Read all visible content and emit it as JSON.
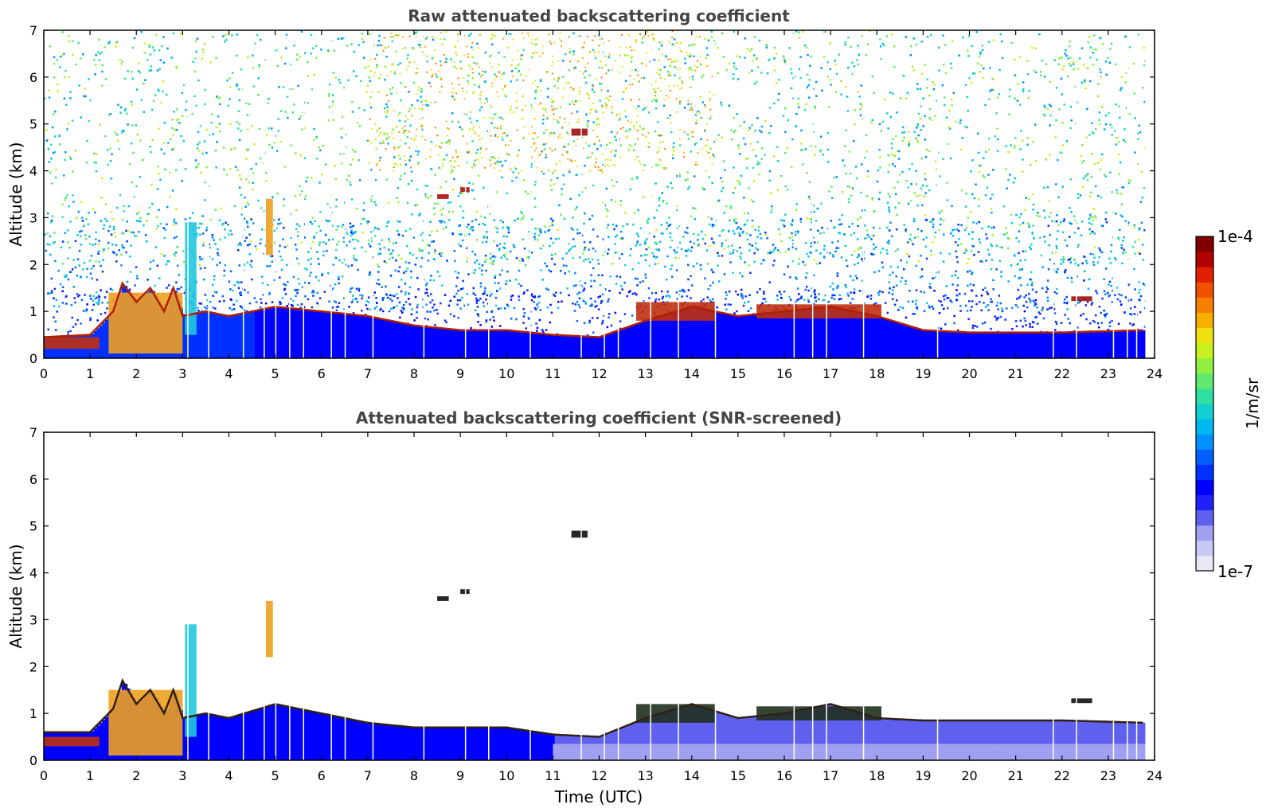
{
  "chart_data": [
    {
      "type": "heatmap",
      "title": "Raw attenuated backscattering coefficient",
      "xlabel": "",
      "ylabel": "Altitude (km)",
      "xlim": [
        0,
        24
      ],
      "ylim": [
        0,
        7
      ],
      "xticks": [
        "0",
        "1",
        "2",
        "3",
        "4",
        "5",
        "6",
        "7",
        "8",
        "9",
        "10",
        "11",
        "12",
        "13",
        "14",
        "15",
        "16",
        "17",
        "18",
        "19",
        "20",
        "21",
        "22",
        "23",
        "24"
      ],
      "yticks": [
        "0",
        "1",
        "2",
        "3",
        "4",
        "5",
        "6",
        "7"
      ],
      "color_scale": "log",
      "clim": [
        1e-07,
        0.0001
      ],
      "screened": false,
      "layer_top_km": [
        {
          "x": 0.0,
          "y": 0.45
        },
        {
          "x": 1.0,
          "y": 0.5
        },
        {
          "x": 1.5,
          "y": 1.0
        },
        {
          "x": 1.7,
          "y": 1.6
        },
        {
          "x": 2.0,
          "y": 1.2
        },
        {
          "x": 2.3,
          "y": 1.5
        },
        {
          "x": 2.6,
          "y": 1.0
        },
        {
          "x": 2.8,
          "y": 1.5
        },
        {
          "x": 3.0,
          "y": 0.9
        },
        {
          "x": 3.5,
          "y": 1.0
        },
        {
          "x": 4.0,
          "y": 0.9
        },
        {
          "x": 5.0,
          "y": 1.1
        },
        {
          "x": 6.0,
          "y": 1.0
        },
        {
          "x": 7.0,
          "y": 0.9
        },
        {
          "x": 8.0,
          "y": 0.7
        },
        {
          "x": 9.0,
          "y": 0.6
        },
        {
          "x": 10.0,
          "y": 0.6
        },
        {
          "x": 11.0,
          "y": 0.5
        },
        {
          "x": 12.0,
          "y": 0.45
        },
        {
          "x": 13.0,
          "y": 0.8
        },
        {
          "x": 14.0,
          "y": 1.1
        },
        {
          "x": 15.0,
          "y": 0.9
        },
        {
          "x": 16.0,
          "y": 1.0
        },
        {
          "x": 17.0,
          "y": 1.1
        },
        {
          "x": 18.0,
          "y": 0.9
        },
        {
          "x": 19.0,
          "y": 0.6
        },
        {
          "x": 20.0,
          "y": 0.55
        },
        {
          "x": 22.0,
          "y": 0.55
        },
        {
          "x": 23.8,
          "y": 0.6
        }
      ],
      "features": [
        {
          "x0": 0.0,
          "x1": 1.2,
          "y0": 0.2,
          "y1": 0.45,
          "color": "#c03010"
        },
        {
          "x0": 1.4,
          "x1": 3.0,
          "y0": 0.1,
          "y1": 1.4,
          "color": "#f0a020"
        },
        {
          "x0": 3.05,
          "x1": 3.3,
          "y0": 0.5,
          "y1": 2.9,
          "color": "#20c8e0"
        },
        {
          "x0": 4.8,
          "x1": 4.95,
          "y0": 2.2,
          "y1": 3.4,
          "color": "#f0a020"
        },
        {
          "x0": 11.4,
          "x1": 11.75,
          "y0": 4.75,
          "y1": 4.9,
          "color": "#a01010"
        },
        {
          "x0": 8.5,
          "x1": 8.75,
          "y0": 3.4,
          "y1": 3.5,
          "color": "#b01010"
        },
        {
          "x0": 9.0,
          "x1": 9.2,
          "y0": 3.55,
          "y1": 3.65,
          "color": "#b01010"
        },
        {
          "x0": 22.2,
          "x1": 22.65,
          "y0": 1.22,
          "y1": 1.32,
          "color": "#a01010"
        },
        {
          "x0": 12.8,
          "x1": 14.5,
          "y0": 0.8,
          "y1": 1.2,
          "color": "#c03010"
        },
        {
          "x0": 15.4,
          "x1": 18.1,
          "y0": 0.85,
          "y1": 1.15,
          "color": "#c03010"
        }
      ]
    },
    {
      "type": "heatmap",
      "title": "Attenuated backscattering coefficient (SNR-screened)",
      "xlabel": "Time (UTC)",
      "ylabel": "Altitude (km)",
      "xlim": [
        0,
        24
      ],
      "ylim": [
        0,
        7
      ],
      "xticks": [
        "0",
        "1",
        "2",
        "3",
        "4",
        "5",
        "6",
        "7",
        "8",
        "9",
        "10",
        "11",
        "12",
        "13",
        "14",
        "15",
        "16",
        "17",
        "18",
        "19",
        "20",
        "21",
        "22",
        "23",
        "24"
      ],
      "yticks": [
        "0",
        "1",
        "2",
        "3",
        "4",
        "5",
        "6",
        "7"
      ],
      "color_scale": "log",
      "clim": [
        1e-07,
        0.0001
      ],
      "screened": true,
      "layer_top_km": [
        {
          "x": 0.0,
          "y": 0.6
        },
        {
          "x": 1.0,
          "y": 0.6
        },
        {
          "x": 1.5,
          "y": 1.1
        },
        {
          "x": 1.7,
          "y": 1.7
        },
        {
          "x": 2.0,
          "y": 1.2
        },
        {
          "x": 2.3,
          "y": 1.5
        },
        {
          "x": 2.6,
          "y": 1.0
        },
        {
          "x": 2.8,
          "y": 1.5
        },
        {
          "x": 3.0,
          "y": 0.9
        },
        {
          "x": 3.5,
          "y": 1.0
        },
        {
          "x": 4.0,
          "y": 0.9
        },
        {
          "x": 5.0,
          "y": 1.2
        },
        {
          "x": 6.0,
          "y": 1.0
        },
        {
          "x": 7.0,
          "y": 0.8
        },
        {
          "x": 8.0,
          "y": 0.7
        },
        {
          "x": 9.0,
          "y": 0.7
        },
        {
          "x": 10.0,
          "y": 0.7
        },
        {
          "x": 11.0,
          "y": 0.55
        },
        {
          "x": 12.0,
          "y": 0.5
        },
        {
          "x": 13.0,
          "y": 0.9
        },
        {
          "x": 14.0,
          "y": 1.2
        },
        {
          "x": 15.0,
          "y": 0.9
        },
        {
          "x": 16.0,
          "y": 1.0
        },
        {
          "x": 17.0,
          "y": 1.2
        },
        {
          "x": 18.0,
          "y": 0.9
        },
        {
          "x": 19.0,
          "y": 0.85
        },
        {
          "x": 20.0,
          "y": 0.85
        },
        {
          "x": 22.0,
          "y": 0.85
        },
        {
          "x": 23.8,
          "y": 0.8
        }
      ],
      "features": [
        {
          "x0": 0.0,
          "x1": 1.2,
          "y0": 0.3,
          "y1": 0.5,
          "color": "#c03010"
        },
        {
          "x0": 1.4,
          "x1": 3.0,
          "y0": 0.1,
          "y1": 1.5,
          "color": "#f0a020"
        },
        {
          "x0": 3.05,
          "x1": 3.3,
          "y0": 0.5,
          "y1": 2.9,
          "color": "#20c8e0"
        },
        {
          "x0": 4.8,
          "x1": 4.95,
          "y0": 2.2,
          "y1": 3.4,
          "color": "#f0a020"
        },
        {
          "x0": 11.4,
          "x1": 11.75,
          "y0": 4.75,
          "y1": 4.9,
          "color": "#101010"
        },
        {
          "x0": 8.5,
          "x1": 8.75,
          "y0": 3.4,
          "y1": 3.5,
          "color": "#101010"
        },
        {
          "x0": 9.0,
          "x1": 9.2,
          "y0": 3.55,
          "y1": 3.65,
          "color": "#101010"
        },
        {
          "x0": 22.2,
          "x1": 22.65,
          "y0": 1.22,
          "y1": 1.32,
          "color": "#101010"
        },
        {
          "x0": 12.8,
          "x1": 14.5,
          "y0": 0.8,
          "y1": 1.2,
          "color": "#203020"
        },
        {
          "x0": 15.4,
          "x1": 18.1,
          "y0": 0.85,
          "y1": 1.15,
          "color": "#203020"
        }
      ]
    }
  ],
  "colorbar": {
    "label": "1/m/sr",
    "max_label": "1e-4",
    "min_label": "1e-7",
    "colors": [
      "#e8e8f8",
      "#c8c8f4",
      "#a0a0f0",
      "#6060f0",
      "#2020f8",
      "#0000ff",
      "#0030ff",
      "#0060ff",
      "#0090ff",
      "#00b8f0",
      "#10d0d0",
      "#30e0a0",
      "#60e870",
      "#90f040",
      "#c8f020",
      "#f0e010",
      "#f8b000",
      "#f88000",
      "#f05000",
      "#e02000",
      "#b00000",
      "#800000"
    ]
  }
}
